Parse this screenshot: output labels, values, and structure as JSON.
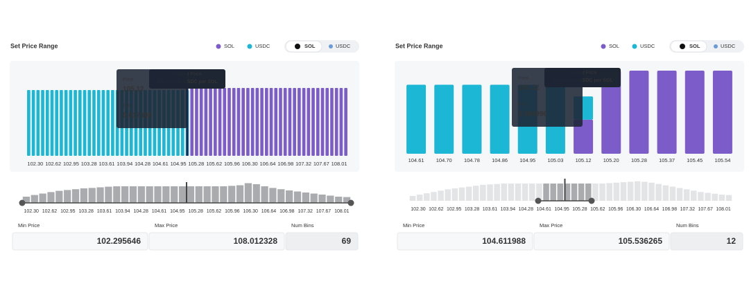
{
  "panels": [
    {
      "title": "Set Price Range",
      "toggle": [
        "SOL",
        "USDC"
      ],
      "main": {
        "series": [
          {
            "name": "SOL",
            "color": "#7b5cc9",
            "values": [
              null,
              null,
              null,
              null,
              null,
              null,
              null,
              null,
              null,
              null,
              null,
              null,
              null,
              null,
              null,
              null,
              null,
              null,
              null,
              null,
              null,
              null,
              null,
              null,
              null,
              null,
              null,
              null,
              null,
              null,
              null,
              null,
              null,
              null,
              null,
              98,
              98,
              98,
              98,
              98,
              98,
              98,
              98,
              98,
              98,
              98,
              98,
              98,
              98,
              98,
              98,
              98,
              98,
              98,
              98,
              98,
              98,
              98,
              98,
              98,
              98,
              98,
              98,
              98,
              98,
              98,
              98,
              98,
              98
            ]
          },
          {
            "name": "USDC",
            "color": "#1bb7d5",
            "values": [
              95,
              95,
              95,
              95,
              95,
              95,
              95,
              95,
              95,
              95,
              95,
              95,
              95,
              95,
              95,
              95,
              95,
              95,
              95,
              95,
              95,
              95,
              95,
              95,
              95,
              95,
              95,
              95,
              95,
              95,
              95,
              95,
              95,
              95,
              95,
              null,
              null,
              null,
              null,
              null,
              null,
              null,
              null,
              null,
              null,
              null,
              null,
              null,
              null,
              null,
              null,
              null,
              null,
              null,
              null,
              null,
              null,
              null,
              null,
              null,
              null,
              null,
              null,
              null,
              null,
              null,
              null,
              null,
              null
            ]
          }
        ],
        "labels": [
          "102.30",
          "102.62",
          "102.95",
          "103.28",
          "103.61",
          "103.94",
          "104.28",
          "104.61",
          "104.95",
          "105.28",
          "105.62",
          "105.96",
          "106.30",
          "106.64",
          "106.98",
          "107.32",
          "107.67",
          "108.01"
        ]
      },
      "tooltip": {
        "price_label": "Price",
        "price": "105.12",
        "token_label": "SOL",
        "token_amount": "0.017399",
        "current_label": "Current Price",
        "current_value": "105.115131 USDC per SOL"
      },
      "overview": {
        "values": [
          30,
          38,
          45,
          52,
          58,
          62,
          66,
          70,
          72,
          75,
          78,
          80,
          80,
          80,
          80,
          80,
          80,
          80,
          80,
          80,
          80,
          80,
          80,
          80,
          80,
          82,
          85,
          95,
          90,
          80,
          72,
          66,
          60,
          55,
          50,
          45,
          40,
          35,
          30,
          28
        ],
        "labels": [
          "102.30",
          "102.62",
          "102.95",
          "103.28",
          "103.61",
          "103.94",
          "104.28",
          "104.61",
          "104.95",
          "105.28",
          "105.62",
          "105.96",
          "106.30",
          "106.64",
          "106.98",
          "107.32",
          "107.67",
          "108.01"
        ]
      },
      "min_price_label": "Min Price",
      "min_price": "102.295646",
      "max_price_label": "Max Price",
      "max_price": "108.012328",
      "num_bins_label": "Num Bins",
      "num_bins": "69"
    },
    {
      "title": "Set Price Range",
      "toggle": [
        "SOL",
        "USDC"
      ],
      "main": {
        "series": [
          {
            "name": "SOL",
            "color": "#7b5cc9",
            "values": [
              null,
              null,
              null,
              null,
              null,
              null,
              41,
              100,
              100,
              100,
              100,
              100
            ]
          },
          {
            "name": "USDC",
            "color": "#1bb7d5",
            "values": [
              83,
              83,
              83,
              83,
              83,
              83,
              28,
              null,
              null,
              null,
              null,
              null
            ]
          }
        ],
        "labels": [
          "104.61",
          "104.70",
          "104.78",
          "104.86",
          "104.95",
          "105.03",
          "105.12",
          "105.20",
          "105.28",
          "105.37",
          "105.45",
          "105.54"
        ]
      },
      "tooltip": {
        "price_label": "Price",
        "price": "105.12",
        "token_label": "SOL",
        "token_amount": "0.090996",
        "current_label": "Current Price",
        "current_value": "105.115131 USDC per SOL"
      },
      "overview": {
        "values": [
          22,
          28,
          34,
          40,
          46,
          52,
          56,
          60,
          64,
          68,
          72,
          74,
          76,
          78,
          78,
          78,
          78,
          78,
          78,
          78,
          78,
          78,
          78,
          78,
          78,
          78,
          78,
          78,
          80,
          82,
          84,
          86,
          88,
          86,
          82,
          76,
          70,
          64,
          58,
          52,
          46,
          40,
          36,
          32,
          28,
          26
        ],
        "labels": [
          "102.30",
          "102.62",
          "102.95",
          "103.28",
          "103.61",
          "103.94",
          "104.28",
          "104.61",
          "104.95",
          "105.28",
          "105.62",
          "105.96",
          "106.30",
          "106.64",
          "106.98",
          "107.32",
          "107.67",
          "108.01"
        ]
      },
      "min_price_label": "Min Price",
      "min_price": "104.611988",
      "max_price_label": "Max Price",
      "max_price": "105.536265",
      "num_bins_label": "Num Bins",
      "num_bins": "12"
    }
  ]
}
